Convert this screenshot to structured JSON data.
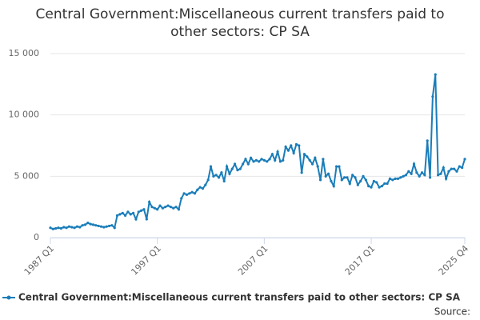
{
  "chart_data": {
    "type": "line",
    "title": [
      "Central Government:Miscellaneous current transfers paid to",
      "other sectors: CP SA"
    ],
    "source": "Source:",
    "categories": [
      "1987 Q1",
      null,
      null,
      null,
      null,
      null,
      null,
      null,
      null,
      null,
      null,
      null,
      null,
      null,
      null,
      null,
      null,
      null,
      null,
      null,
      null,
      null,
      null,
      null,
      null,
      null,
      null,
      null,
      null,
      null,
      null,
      null,
      null,
      null,
      null,
      null,
      null,
      null,
      null,
      null,
      "1997 Q1",
      null,
      null,
      null,
      null,
      null,
      null,
      null,
      null,
      null,
      null,
      null,
      null,
      null,
      null,
      null,
      null,
      null,
      null,
      null,
      null,
      null,
      null,
      null,
      null,
      null,
      null,
      null,
      null,
      null,
      null,
      null,
      null,
      null,
      null,
      null,
      null,
      null,
      null,
      null,
      "2007 Q1",
      null,
      null,
      null,
      null,
      null,
      null,
      null,
      null,
      null,
      null,
      null,
      null,
      null,
      null,
      null,
      null,
      null,
      null,
      null,
      null,
      null,
      null,
      null,
      null,
      null,
      null,
      null,
      null,
      null,
      null,
      null,
      null,
      null,
      null,
      null,
      null,
      null,
      null,
      null,
      "2017 Q1",
      null,
      null,
      null,
      null,
      null,
      null,
      null,
      null,
      null,
      null,
      null,
      null,
      null,
      null,
      null,
      null,
      null,
      null,
      null,
      null,
      null,
      null,
      null,
      null,
      null,
      null,
      null,
      null,
      null,
      null,
      null,
      null,
      null,
      null,
      "2025 Q4"
    ],
    "series": [
      {
        "name": "Central Government:Miscellaneous current transfers paid to other sectors: CP SA",
        "color": "#1a7db9",
        "values": [
          800,
          700,
          750,
          800,
          750,
          850,
          800,
          900,
          850,
          800,
          900,
          850,
          1000,
          1050,
          1200,
          1100,
          1050,
          1000,
          950,
          900,
          850,
          900,
          950,
          1000,
          800,
          1800,
          1900,
          2000,
          1800,
          2100,
          1900,
          2000,
          1500,
          2100,
          2200,
          2300,
          1500,
          2900,
          2500,
          2400,
          2300,
          2600,
          2400,
          2500,
          2600,
          2500,
          2400,
          2500,
          2300,
          3200,
          3600,
          3500,
          3600,
          3700,
          3600,
          3900,
          4100,
          4000,
          4300,
          4700,
          5800,
          5000,
          5100,
          4900,
          5300,
          4600,
          5800,
          5200,
          5600,
          6000,
          5500,
          5600,
          6000,
          6400,
          6000,
          6500,
          6200,
          6300,
          6200,
          6400,
          6300,
          6200,
          6400,
          6800,
          6300,
          7000,
          6200,
          6300,
          7400,
          7100,
          7500,
          6900,
          7600,
          7500,
          5300,
          6800,
          6600,
          6300,
          6000,
          6500,
          5800,
          4700,
          6400,
          5000,
          5200,
          4600,
          4200,
          5800,
          5800,
          4700,
          4900,
          4900,
          4400,
          5100,
          4900,
          4300,
          4600,
          5000,
          4700,
          4200,
          4100,
          4600,
          4500,
          4100,
          4200,
          4400,
          4400,
          4800,
          4700,
          4800,
          4800,
          4900,
          5000,
          5100,
          5400,
          5200,
          6000,
          5300,
          5000,
          5300,
          5100,
          7900,
          4900,
          11500,
          13300,
          5100,
          5200,
          5700,
          4800,
          5400,
          5600,
          5600,
          5400,
          5800,
          5700,
          6400
        ]
      }
    ],
    "ylim": [
      0,
      15000
    ],
    "yticks": [
      0,
      {
        "value": 5000,
        "label": "5 000"
      },
      {
        "value": 10000,
        "label": "10 000"
      },
      {
        "value": 15000,
        "label": "15 000"
      }
    ],
    "grid": true,
    "legend": "bottom"
  }
}
